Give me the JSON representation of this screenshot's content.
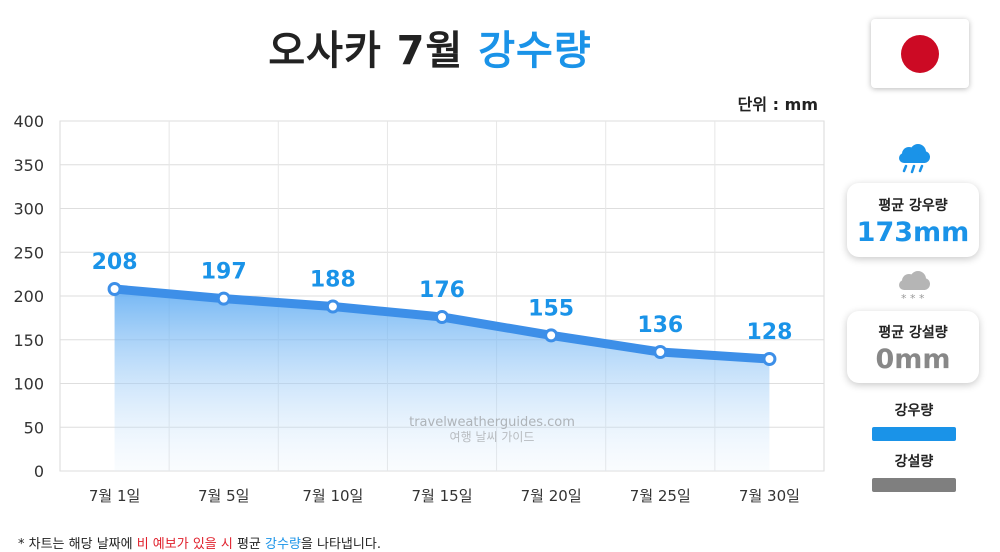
{
  "header": {
    "title_main": "오사카 7월",
    "title_accent": "강수량"
  },
  "unit_label": "단위 : mm",
  "colors": {
    "accent_blue": "#1a93e8",
    "line_blue": "#3d8fe8",
    "flag_red": "#cc0a24",
    "snow_gray": "#7f7f7f",
    "footnote_red": "#e0202c"
  },
  "flag": {
    "icon": "japan-flag-icon"
  },
  "chart_data": {
    "type": "area",
    "categories": [
      "7월 1일",
      "7월 5일",
      "7월 10일",
      "7월 15일",
      "7월 20일",
      "7월 25일",
      "7월 30일"
    ],
    "series": [
      {
        "name": "강우량",
        "values": [
          208,
          197,
          188,
          176,
          155,
          136,
          128
        ]
      }
    ],
    "data_labels": [
      "208",
      "197",
      "188",
      "176",
      "155",
      "136",
      "128"
    ],
    "yticks": [
      "0",
      "50",
      "100",
      "150",
      "200",
      "250",
      "300",
      "350",
      "400"
    ],
    "ylim": [
      0,
      400
    ],
    "grid": true,
    "watermark": [
      "travelweatherguides.com",
      "여행 날씨 가이드"
    ]
  },
  "side": {
    "rain_icon": "rain-cloud-icon",
    "rain_label": "평균 강우량",
    "rain_value": "173mm",
    "snow_icon": "snow-cloud-icon",
    "snow_label": "평균 강설량",
    "snow_value": "0mm"
  },
  "legend": {
    "rain_label": "강우량",
    "snow_label": "강설량"
  },
  "footnote": {
    "part1": "* 차트는 해당 날짜에 ",
    "part2": "비 예보가 있을 시",
    "part3": " 평균 ",
    "part4": "강수량",
    "part5": "을 나타냅니다."
  }
}
